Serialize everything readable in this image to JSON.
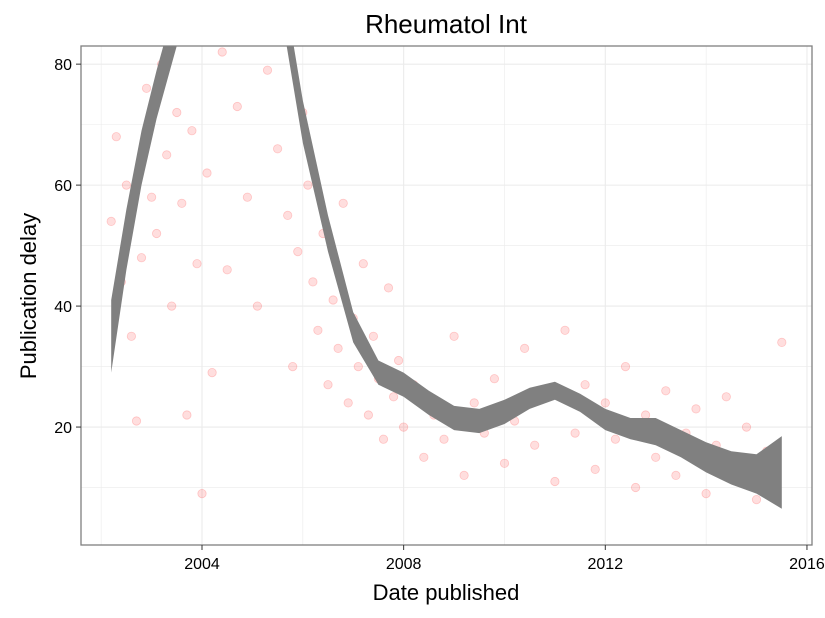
{
  "chart_data": {
    "type": "scatter",
    "title": "Rheumatol Int",
    "xlabel": "Date published",
    "ylabel": "Publication delay",
    "xlim": [
      2001.6,
      2016.1
    ],
    "ylim": [
      0.5,
      83
    ],
    "x_ticks": [
      2004,
      2008,
      2012,
      2016
    ],
    "x_tick_labels": [
      "2004",
      "2008",
      "2012",
      "2016"
    ],
    "y_ticks": [
      20,
      40,
      60,
      80
    ],
    "y_tick_labels": [
      "20",
      "40",
      "60",
      "80"
    ],
    "grid": true,
    "legend": "none",
    "colors": {
      "points": "#ff0000",
      "smooth_band": "#808080",
      "panel_border": "#7f7f7f",
      "grid": "#ebebeb"
    },
    "points_opacity": 0.13,
    "series": [
      {
        "type": "scatter",
        "values": [
          [
            2002.2,
            54
          ],
          [
            2002.3,
            68
          ],
          [
            2002.4,
            44
          ],
          [
            2002.5,
            60
          ],
          [
            2002.6,
            35
          ],
          [
            2002.7,
            21
          ],
          [
            2002.8,
            48
          ],
          [
            2002.9,
            76
          ],
          [
            2003.0,
            58
          ],
          [
            2003.1,
            52
          ],
          [
            2003.2,
            80
          ],
          [
            2003.3,
            65
          ],
          [
            2003.4,
            40
          ],
          [
            2003.5,
            72
          ],
          [
            2003.6,
            57
          ],
          [
            2003.7,
            22
          ],
          [
            2003.8,
            69
          ],
          [
            2003.9,
            47
          ],
          [
            2004.0,
            9
          ],
          [
            2004.1,
            62
          ],
          [
            2004.2,
            29
          ],
          [
            2004.4,
            82
          ],
          [
            2004.5,
            46
          ],
          [
            2004.7,
            73
          ],
          [
            2004.9,
            58
          ],
          [
            2005.1,
            40
          ],
          [
            2005.3,
            79
          ],
          [
            2005.5,
            66
          ],
          [
            2005.7,
            55
          ],
          [
            2005.8,
            30
          ],
          [
            2005.9,
            49
          ],
          [
            2006.0,
            72
          ],
          [
            2006.1,
            60
          ],
          [
            2006.2,
            44
          ],
          [
            2006.3,
            36
          ],
          [
            2006.4,
            52
          ],
          [
            2006.5,
            27
          ],
          [
            2006.6,
            41
          ],
          [
            2006.7,
            33
          ],
          [
            2006.8,
            57
          ],
          [
            2006.9,
            24
          ],
          [
            2007.0,
            38
          ],
          [
            2007.1,
            30
          ],
          [
            2007.2,
            47
          ],
          [
            2007.3,
            22
          ],
          [
            2007.4,
            35
          ],
          [
            2007.5,
            28
          ],
          [
            2007.6,
            18
          ],
          [
            2007.7,
            43
          ],
          [
            2007.8,
            25
          ],
          [
            2007.9,
            31
          ],
          [
            2008.0,
            20
          ],
          [
            2008.2,
            27
          ],
          [
            2008.4,
            15
          ],
          [
            2008.6,
            22
          ],
          [
            2008.8,
            18
          ],
          [
            2009.0,
            35
          ],
          [
            2009.2,
            12
          ],
          [
            2009.4,
            24
          ],
          [
            2009.6,
            19
          ],
          [
            2009.8,
            28
          ],
          [
            2010.0,
            14
          ],
          [
            2010.2,
            21
          ],
          [
            2010.4,
            33
          ],
          [
            2010.6,
            17
          ],
          [
            2010.8,
            25
          ],
          [
            2011.0,
            11
          ],
          [
            2011.2,
            36
          ],
          [
            2011.4,
            19
          ],
          [
            2011.6,
            27
          ],
          [
            2011.8,
            13
          ],
          [
            2012.0,
            24
          ],
          [
            2012.2,
            18
          ],
          [
            2012.4,
            30
          ],
          [
            2012.6,
            10
          ],
          [
            2012.8,
            22
          ],
          [
            2013.0,
            15
          ],
          [
            2013.2,
            26
          ],
          [
            2013.4,
            12
          ],
          [
            2013.6,
            19
          ],
          [
            2013.8,
            23
          ],
          [
            2014.0,
            9
          ],
          [
            2014.2,
            17
          ],
          [
            2014.4,
            25
          ],
          [
            2014.6,
            13
          ],
          [
            2014.8,
            20
          ],
          [
            2015.0,
            8
          ],
          [
            2015.2,
            16
          ],
          [
            2015.4,
            11
          ],
          [
            2015.5,
            34
          ]
        ]
      },
      {
        "type": "smooth_band",
        "x": [
          2002.2,
          2002.5,
          2002.8,
          2003.1,
          2003.4,
          2003.7,
          2004.0,
          2004.5,
          2005.0,
          2005.5,
          2006.0,
          2006.5,
          2007.0,
          2007.5,
          2008.0,
          2008.5,
          2009.0,
          2009.5,
          2010.0,
          2010.5,
          2011.0,
          2011.5,
          2012.0,
          2012.5,
          2013.0,
          2013.5,
          2014.0,
          2014.5,
          2015.0,
          2015.5
        ],
        "lower": [
          29,
          46,
          60,
          71,
          80,
          89,
          96,
          101,
          100,
          92,
          67,
          49,
          34,
          27,
          25,
          22,
          19.5,
          19,
          20.5,
          23,
          24.5,
          22.5,
          19.5,
          18,
          17,
          15,
          12.5,
          10.5,
          9,
          6.5
        ],
        "upper": [
          41,
          56,
          69,
          79,
          88,
          96,
          103,
          108,
          107,
          99,
          74,
          55,
          39,
          31,
          29,
          26,
          23.5,
          23,
          24.5,
          26.5,
          27.5,
          25.5,
          23,
          21.5,
          21.5,
          19.5,
          17.5,
          16,
          15.5,
          18.5
        ]
      }
    ]
  }
}
